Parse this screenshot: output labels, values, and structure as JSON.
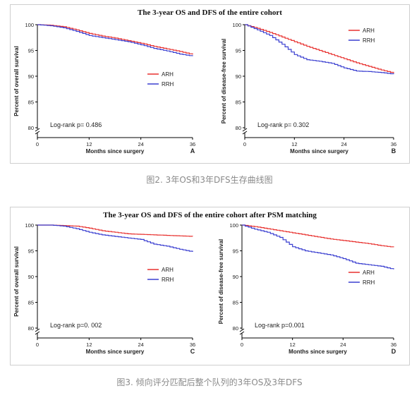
{
  "figures": [
    {
      "id": "fig2",
      "title": "The 3-year OS and DFS of the entire cohort",
      "caption": "图2. 3年OS和3年DFS生存曲线图",
      "panels": [
        {
          "id": "A",
          "letter": "A",
          "ylabel": "Percent of overall survival",
          "xlabel": "Months since surgery",
          "logrank": "Log-rank  p= 0.486",
          "legend_pos": "mid-right"
        },
        {
          "id": "B",
          "letter": "B",
          "ylabel": "Percent of disease-free survival",
          "xlabel": "Months since surgery",
          "logrank": "Log-rank  p= 0.302",
          "legend_pos": "top-right"
        }
      ]
    },
    {
      "id": "fig3",
      "title": "The 3-year OS and DFS of the entire cohort after PSM matching",
      "caption": "图3. 倾向评分匹配后整个队列的3年OS及3年DFS",
      "panels": [
        {
          "id": "C",
          "letter": "C",
          "ylabel": "Percent of overall survival",
          "xlabel": "Months since surgery",
          "logrank": "Log-rank  p=0. 002",
          "legend_pos": "mid-right"
        },
        {
          "id": "D",
          "letter": "D",
          "ylabel": "Percent of disease-free survival",
          "xlabel": "Months since surgery",
          "logrank": "Log-rank  p=0.001",
          "legend_pos": "mid-right"
        }
      ]
    }
  ],
  "colors": {
    "ARH": "#e8312f",
    "RRH": "#3a3fd0"
  },
  "chart_data": [
    {
      "panel": "A",
      "type": "line",
      "xlabel": "Months since surgery",
      "ylabel": "Percent of overall survival",
      "xlim": [
        0,
        36
      ],
      "ylim": [
        80,
        100
      ],
      "xticks": [
        0,
        12,
        24,
        36
      ],
      "yticks": [
        80,
        85,
        90,
        95,
        100
      ],
      "y_axis_break": true,
      "series": [
        {
          "name": "ARH",
          "x": [
            0,
            3,
            6,
            9,
            12,
            15,
            18,
            21,
            24,
            27,
            30,
            33,
            36
          ],
          "y": [
            100,
            99.9,
            99.6,
            99.0,
            98.3,
            97.8,
            97.4,
            96.9,
            96.4,
            95.8,
            95.3,
            94.8,
            94.2
          ]
        },
        {
          "name": "RRH",
          "x": [
            0,
            3,
            6,
            9,
            12,
            15,
            18,
            21,
            24,
            27,
            30,
            33,
            36
          ],
          "y": [
            100,
            99.8,
            99.4,
            98.7,
            97.9,
            97.5,
            97.1,
            96.7,
            96.1,
            95.4,
            94.9,
            94.3,
            93.9
          ]
        }
      ],
      "annotations": [
        "Log-rank  p= 0.486"
      ]
    },
    {
      "panel": "B",
      "type": "line",
      "xlabel": "Months since surgery",
      "ylabel": "Percent of disease-free survival",
      "xlim": [
        0,
        36
      ],
      "ylim": [
        80,
        100
      ],
      "xticks": [
        0,
        12,
        24,
        36
      ],
      "yticks": [
        80,
        85,
        90,
        95,
        100
      ],
      "y_axis_break": true,
      "series": [
        {
          "name": "ARH",
          "x": [
            0,
            3,
            6,
            9,
            12,
            15,
            18,
            21,
            24,
            27,
            30,
            33,
            36
          ],
          "y": [
            100,
            99.3,
            98.5,
            97.6,
            96.7,
            95.8,
            95.0,
            94.2,
            93.4,
            92.6,
            91.9,
            91.2,
            90.6
          ]
        },
        {
          "name": "RRH",
          "x": [
            0,
            3,
            6,
            9,
            12,
            15,
            18,
            21,
            24,
            27,
            30,
            33,
            36
          ],
          "y": [
            100,
            99.0,
            97.9,
            96.2,
            94.2,
            93.2,
            92.9,
            92.5,
            91.6,
            91.0,
            90.9,
            90.7,
            90.4
          ]
        }
      ],
      "annotations": [
        "Log-rank  p= 0.302"
      ]
    },
    {
      "panel": "C",
      "type": "line",
      "xlabel": "Months since surgery",
      "ylabel": "Percent of overall survival",
      "xlim": [
        0,
        36
      ],
      "ylim": [
        80,
        100
      ],
      "xticks": [
        0,
        12,
        24,
        36
      ],
      "yticks": [
        80,
        85,
        90,
        95,
        100
      ],
      "y_axis_break": true,
      "series": [
        {
          "name": "ARH",
          "x": [
            0,
            3,
            6,
            9,
            12,
            15,
            18,
            21,
            24,
            27,
            30,
            33,
            36
          ],
          "y": [
            100,
            100,
            99.9,
            99.8,
            99.4,
            98.9,
            98.6,
            98.3,
            98.2,
            98.1,
            98.0,
            97.9,
            97.8
          ]
        },
        {
          "name": "RRH",
          "x": [
            0,
            3,
            6,
            9,
            12,
            15,
            18,
            21,
            24,
            27,
            30,
            33,
            36
          ],
          "y": [
            100,
            100,
            99.8,
            99.3,
            98.6,
            98.1,
            97.8,
            97.5,
            97.2,
            96.3,
            95.9,
            95.3,
            94.8
          ]
        }
      ],
      "annotations": [
        "Log-rank  p=0. 002"
      ]
    },
    {
      "panel": "D",
      "type": "line",
      "xlabel": "Months since surgery",
      "ylabel": "Percent of disease-free survival",
      "xlim": [
        0,
        36
      ],
      "ylim": [
        80,
        100
      ],
      "xticks": [
        0,
        12,
        24,
        36
      ],
      "yticks": [
        80,
        85,
        90,
        95,
        100
      ],
      "y_axis_break": true,
      "series": [
        {
          "name": "ARH",
          "x": [
            0,
            3,
            6,
            9,
            12,
            15,
            18,
            21,
            24,
            27,
            30,
            33,
            36
          ],
          "y": [
            100,
            99.7,
            99.3,
            98.9,
            98.5,
            98.1,
            97.7,
            97.3,
            97.0,
            96.7,
            96.4,
            96.0,
            95.7
          ]
        },
        {
          "name": "RRH",
          "x": [
            0,
            3,
            6,
            9,
            12,
            15,
            18,
            21,
            24,
            27,
            30,
            33,
            36
          ],
          "y": [
            100,
            99.2,
            98.6,
            97.6,
            95.8,
            95.0,
            94.6,
            94.2,
            93.5,
            92.6,
            92.3,
            92.0,
            91.4
          ]
        }
      ],
      "annotations": [
        "Log-rank  p=0.001"
      ]
    }
  ]
}
